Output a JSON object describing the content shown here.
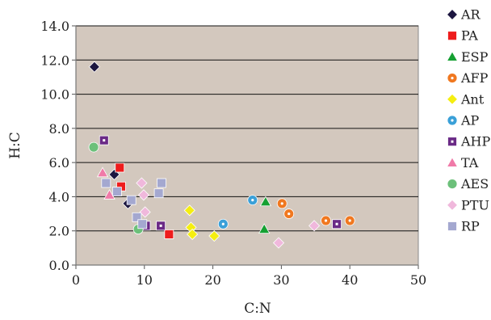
{
  "chart_data": {
    "type": "scatter",
    "title": "",
    "xlabel": "C:N",
    "ylabel": "H:C",
    "xlim": [
      0,
      50
    ],
    "ylim": [
      0,
      14
    ],
    "x_ticks": [
      "0",
      "10",
      "20",
      "30",
      "40",
      "50"
    ],
    "y_ticks": [
      "0.0",
      "2.0",
      "4.0",
      "6.0",
      "8.0",
      "10.0",
      "12.0",
      "14.0"
    ],
    "grid": "horizontal",
    "plot_background": "#d3c8be",
    "legend_position": "right",
    "series": [
      {
        "name": "AR",
        "marker": "diamond",
        "color": "#1c1640",
        "points": [
          [
            2.7,
            11.6
          ],
          [
            5.6,
            5.3
          ],
          [
            7.6,
            3.6
          ]
        ]
      },
      {
        "name": "PA",
        "marker": "square",
        "color": "#ee1c1c",
        "points": [
          [
            6.4,
            5.7
          ],
          [
            6.6,
            4.6
          ],
          [
            13.6,
            1.8
          ]
        ]
      },
      {
        "name": "ESP",
        "marker": "triangle",
        "color": "#15a032",
        "points": [
          [
            27.7,
            3.7
          ],
          [
            27.5,
            2.1
          ]
        ]
      },
      {
        "name": "AFP",
        "marker": "circle-dot",
        "color": "#f07820",
        "points": [
          [
            30.1,
            3.6
          ],
          [
            31.1,
            3.0
          ],
          [
            36.5,
            2.6
          ],
          [
            40.0,
            2.6
          ]
        ]
      },
      {
        "name": "Ant",
        "marker": "diamond",
        "color": "#f5ee10",
        "points": [
          [
            16.6,
            3.2
          ],
          [
            16.8,
            2.2
          ],
          [
            17.0,
            1.8
          ],
          [
            20.2,
            1.7
          ]
        ]
      },
      {
        "name": "AP",
        "marker": "circle-dot",
        "color": "#3aa0d8",
        "points": [
          [
            21.5,
            2.4
          ],
          [
            25.8,
            3.8
          ]
        ]
      },
      {
        "name": "AHP",
        "marker": "square-dot",
        "color": "#6a2a86",
        "points": [
          [
            4.1,
            7.3
          ],
          [
            10.2,
            2.3
          ],
          [
            12.4,
            2.3
          ],
          [
            38.1,
            2.4
          ]
        ]
      },
      {
        "name": "TA",
        "marker": "triangle",
        "color": "#f07aa8",
        "points": [
          [
            3.9,
            5.4
          ],
          [
            4.9,
            4.1
          ]
        ]
      },
      {
        "name": "AES",
        "marker": "circle",
        "color": "#6cc07a",
        "points": [
          [
            2.6,
            6.9
          ],
          [
            9.1,
            2.1
          ]
        ]
      },
      {
        "name": "PTU",
        "marker": "diamond",
        "color": "#f0b8dc",
        "points": [
          [
            9.6,
            4.8
          ],
          [
            9.9,
            4.1
          ],
          [
            10.1,
            3.1
          ],
          [
            29.6,
            1.3
          ],
          [
            34.8,
            2.3
          ]
        ]
      },
      {
        "name": "RP",
        "marker": "square",
        "color": "#a4a8d0",
        "points": [
          [
            4.4,
            4.8
          ],
          [
            6.0,
            4.3
          ],
          [
            8.1,
            3.8
          ],
          [
            8.9,
            2.8
          ],
          [
            9.7,
            2.4
          ],
          [
            12.1,
            4.2
          ],
          [
            12.5,
            4.8
          ]
        ]
      }
    ]
  }
}
